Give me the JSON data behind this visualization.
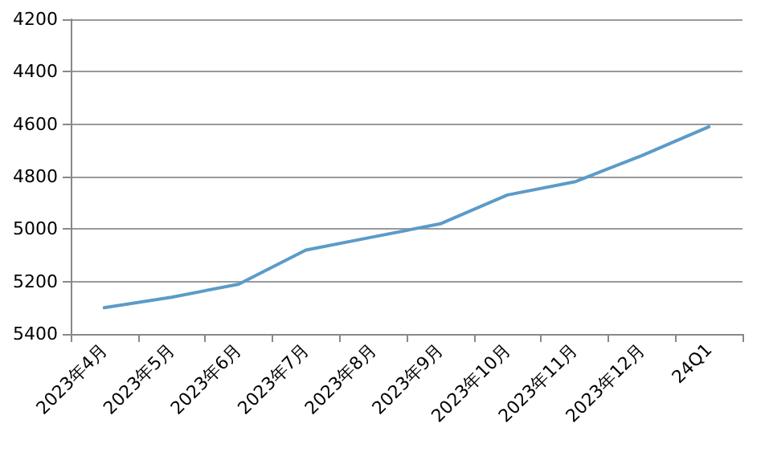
{
  "chart_data": {
    "type": "line",
    "categories": [
      "2023年4月",
      "2023年5月",
      "2023年6月",
      "2023年7月",
      "2023年8月",
      "2023年9月",
      "2023年10月",
      "2023年11月",
      "2023年12月",
      "24Q1"
    ],
    "series": [
      {
        "color": "#5b9bc8",
        "values": [
          5300,
          5260,
          5210,
          5080,
          5030,
          4980,
          4870,
          4820,
          4720,
          4610
        ]
      }
    ],
    "ylim": [
      5400,
      4200
    ],
    "yticks": [
      4200,
      4400,
      4600,
      4800,
      5000,
      5200,
      5400
    ],
    "grid": "y",
    "marker": "none",
    "line_style": "solid"
  }
}
